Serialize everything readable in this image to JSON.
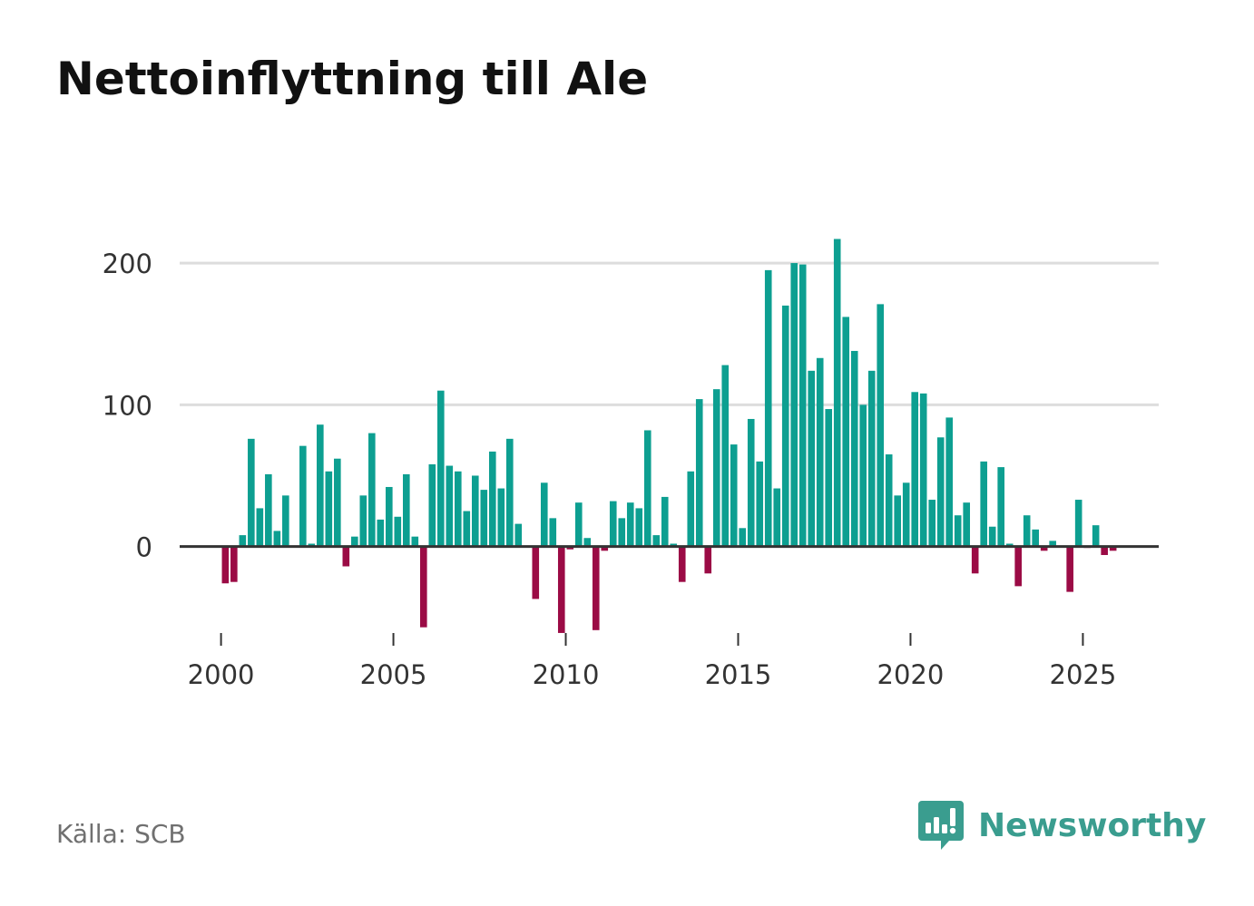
{
  "title": "Nettoinflyttning till Ale",
  "source": "Källa: SCB",
  "brand": {
    "name": "Newsworthy",
    "icon": "newsworthy-logo-icon"
  },
  "colors": {
    "positive": "#0d9f91",
    "negative": "#9b0b45",
    "grid": "#dddddd",
    "axis": "#333333",
    "brand": "#3a9d8f"
  },
  "chart_data": {
    "type": "bar",
    "title": "Nettoinflyttning till Ale",
    "xlabel": "",
    "ylabel": "",
    "x_range": [
      1998.8,
      2027.2
    ],
    "ylim": [
      -70,
      225
    ],
    "y_ticks": [
      0,
      100,
      200
    ],
    "x_ticks": [
      2000,
      2005,
      2010,
      2015,
      2020,
      2025
    ],
    "bar_width": 0.2,
    "start": 2000.0,
    "step": 0.25,
    "note": "Quarterly net migration, Q1 2000 onwards (bar centers at start + i*step + 0.125)",
    "values": [
      -26,
      -25,
      8,
      76,
      27,
      51,
      11,
      36,
      0,
      71,
      2,
      86,
      53,
      62,
      -14,
      7,
      36,
      80,
      19,
      42,
      21,
      51,
      7,
      -57,
      58,
      110,
      57,
      53,
      25,
      50,
      40,
      67,
      41,
      76,
      16,
      0,
      -37,
      45,
      20,
      -61,
      -2,
      31,
      6,
      -59,
      -3,
      32,
      20,
      31,
      27,
      82,
      8,
      35,
      2,
      -25,
      53,
      104,
      -19,
      111,
      128,
      72,
      13,
      90,
      60,
      195,
      41,
      170,
      200,
      199,
      124,
      133,
      97,
      217,
      162,
      138,
      100,
      124,
      171,
      65,
      36,
      45,
      109,
      108,
      33,
      77,
      91,
      22,
      31,
      -19,
      60,
      14,
      56,
      2,
      -28,
      22,
      12,
      -3,
      4,
      0,
      -32,
      33,
      -1,
      15,
      -6,
      -3
    ]
  }
}
